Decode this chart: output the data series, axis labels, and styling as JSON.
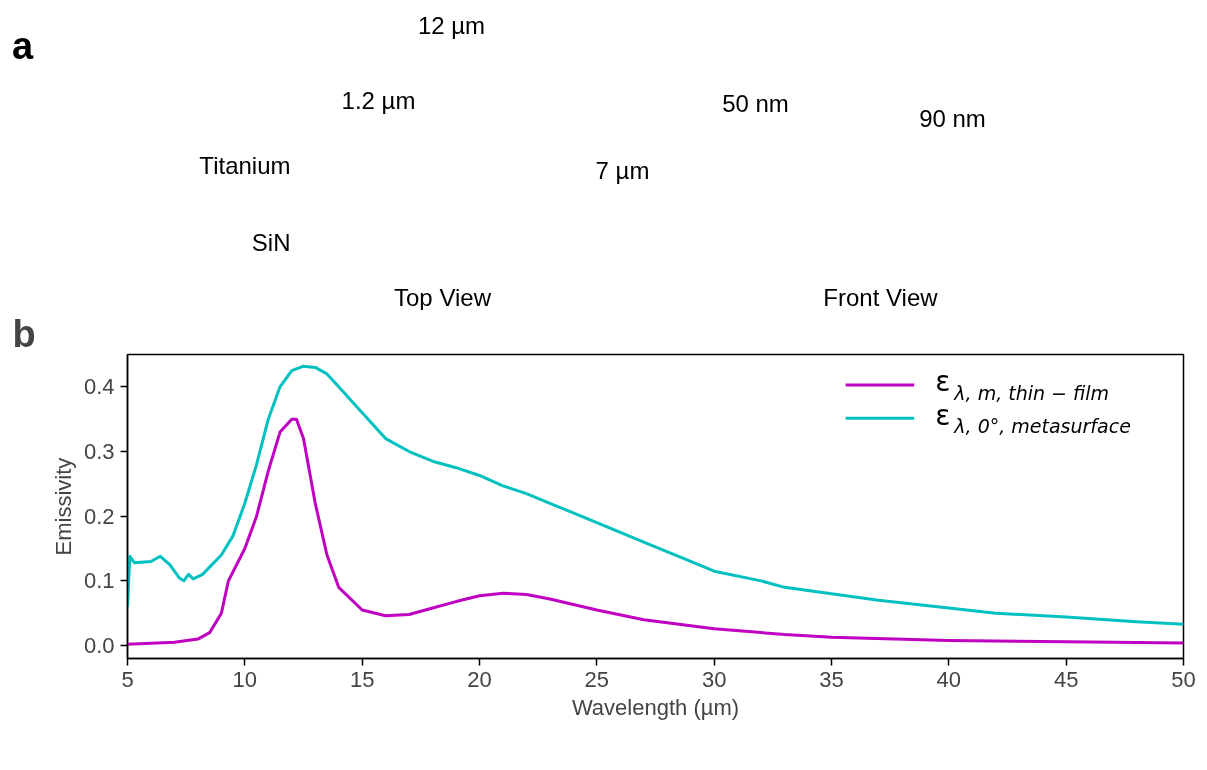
{
  "chart_data": [
    {
      "type": "other",
      "title": "a",
      "annotations": [
        "12 µm",
        "1.2 µm",
        "Titanium",
        "SiN",
        "7 µm",
        "Top View",
        "50 nm",
        "90 nm",
        "Front View"
      ]
    },
    {
      "type": "line",
      "title": "b",
      "xlabel": "Wavelength (µm)",
      "ylabel": "Emissivity",
      "xlim": [
        5,
        50
      ],
      "xticks": [
        5,
        10,
        15,
        20,
        25,
        30,
        35,
        40,
        45,
        50
      ],
      "ylim": [
        -0.02,
        0.45
      ],
      "yticks": [
        {
          "value": 0,
          "label": "0.0"
        },
        0.1,
        0.2,
        0.3,
        0.4
      ],
      "grid": false,
      "legend": "top right",
      "series": [
        {
          "name": "ε$_{λ, m, thin − film}$",
          "color": "#c000c0",
          "x": [
            5,
            7,
            8,
            8.5,
            9,
            9.3,
            10,
            10.5,
            11,
            11.5,
            12,
            12.2,
            12.5,
            13,
            13.5,
            14,
            15,
            16,
            17,
            18,
            19,
            20,
            21,
            22,
            23,
            25,
            27,
            30,
            33,
            35,
            40,
            45,
            50
          ],
          "values": [
            0.002,
            0.005,
            0.01,
            0.02,
            0.05,
            0.1,
            0.15,
            0.2,
            0.27,
            0.33,
            0.35,
            0.35,
            0.32,
            0.22,
            0.14,
            0.09,
            0.055,
            0.046,
            0.048,
            0.058,
            0.068,
            0.077,
            0.081,
            0.079,
            0.072,
            0.055,
            0.04,
            0.026,
            0.017,
            0.013,
            0.008,
            0.006,
            0.004
          ]
        },
        {
          "name": "ε$_{λ, 0°, metasurface}$",
          "color": "#00c0c0",
          "x": [
            5,
            5.1,
            5.3,
            6,
            6.4,
            6.8,
            7.2,
            7.4,
            7.6,
            7.8,
            8.2,
            9,
            9.5,
            10,
            10.5,
            11,
            11.5,
            12,
            12.5,
            13,
            13.5,
            14,
            15,
            16,
            17,
            18,
            19,
            20,
            21,
            22,
            23,
            25,
            27,
            29,
            30,
            32,
            33,
            35,
            37,
            40,
            42,
            45,
            48,
            50
          ],
          "values": [
            0.06,
            0.138,
            0.128,
            0.13,
            0.138,
            0.125,
            0.105,
            0.1,
            0.11,
            0.103,
            0.11,
            0.14,
            0.17,
            0.22,
            0.28,
            0.35,
            0.4,
            0.425,
            0.432,
            0.43,
            0.42,
            0.4,
            0.36,
            0.32,
            0.3,
            0.285,
            0.275,
            0.263,
            0.247,
            0.235,
            0.22,
            0.19,
            0.16,
            0.13,
            0.115,
            0.1,
            0.09,
            0.08,
            0.07,
            0.058,
            0.05,
            0.044,
            0.037,
            0.033
          ]
        }
      ]
    }
  ]
}
